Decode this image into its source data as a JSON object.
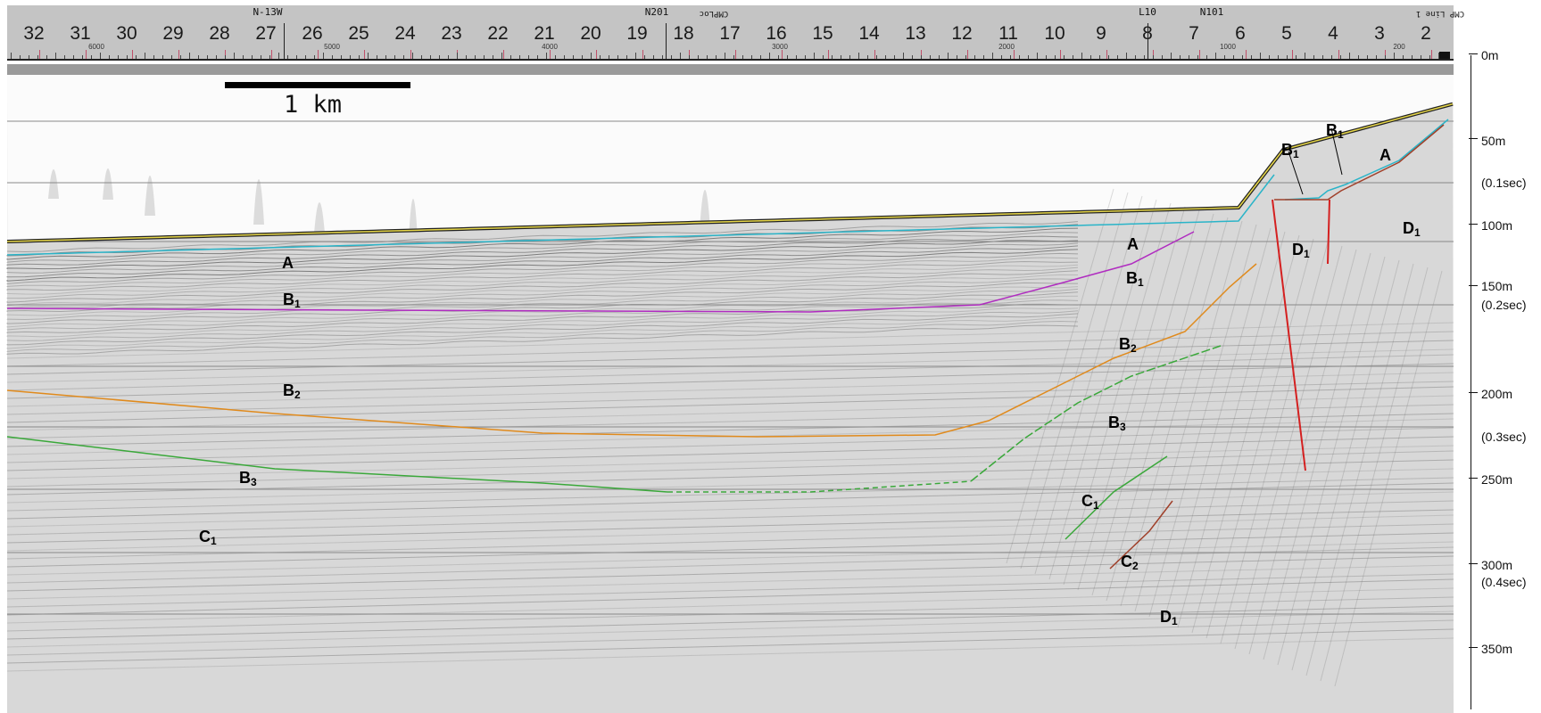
{
  "ruler": {
    "raw_line": "N-13W                                                                  N201   CMPLoc                                                                     L10            N101",
    "labels": [
      "N-13W",
      "N201",
      "CMPLoc",
      "L10",
      "N101",
      "CMP Line 1"
    ],
    "numbers": [
      "32",
      "31",
      "30",
      "29",
      "28",
      "27",
      "26",
      "25",
      "24",
      "23",
      "22",
      "21",
      "20",
      "19",
      "18",
      "17",
      "16",
      "15",
      "14",
      "13",
      "12",
      "11",
      "10",
      "9",
      "8",
      "7",
      "6",
      "5",
      "4",
      "3",
      "2"
    ],
    "minor": [
      "6000",
      "5000",
      "4000",
      "3000",
      "2000",
      "1000",
      "200"
    ]
  },
  "scale_bar": {
    "label": "1 km"
  },
  "depth_scale": [
    {
      "label": "0m"
    },
    {
      "label": "50m"
    },
    {
      "label": "(0.1sec)"
    },
    {
      "label": "100m"
    },
    {
      "label": "150m"
    },
    {
      "label": "(0.2sec)"
    },
    {
      "label": "200m"
    },
    {
      "label": "(0.3sec)"
    },
    {
      "label": "250m"
    },
    {
      "label": "300m"
    },
    {
      "label": "(0.4sec)"
    },
    {
      "label": "350m"
    }
  ],
  "units": [
    {
      "id": "A-left",
      "text": "A",
      "sub": ""
    },
    {
      "id": "B1-left",
      "text": "B",
      "sub": "1"
    },
    {
      "id": "B2-left",
      "text": "B",
      "sub": "2"
    },
    {
      "id": "B3-left",
      "text": "B",
      "sub": "3"
    },
    {
      "id": "C1-left",
      "text": "C",
      "sub": "1"
    },
    {
      "id": "A-mid",
      "text": "A",
      "sub": ""
    },
    {
      "id": "B1-mid",
      "text": "B",
      "sub": "1"
    },
    {
      "id": "B2-mid",
      "text": "B",
      "sub": "2"
    },
    {
      "id": "B3-mid",
      "text": "B",
      "sub": "3"
    },
    {
      "id": "C1-mid",
      "text": "C",
      "sub": "1"
    },
    {
      "id": "C2-mid",
      "text": "C",
      "sub": "2"
    },
    {
      "id": "D1-mid",
      "text": "D",
      "sub": "1"
    },
    {
      "id": "B1-fault1",
      "text": "B",
      "sub": "1"
    },
    {
      "id": "B1-fault2",
      "text": "B",
      "sub": "1"
    },
    {
      "id": "A-right",
      "text": "A",
      "sub": ""
    },
    {
      "id": "D1-right1",
      "text": "D",
      "sub": "1"
    },
    {
      "id": "D1-right2",
      "text": "D",
      "sub": "1"
    }
  ],
  "colors": {
    "A": "#e8d84a",
    "B1": "#2ab4c8",
    "B2": "#b02cc0",
    "B3": "#e08a1c",
    "C1": "#3aa83a",
    "D1": "#a0402a",
    "fault": "#d42020",
    "ruler_tick": "#c0506a"
  }
}
